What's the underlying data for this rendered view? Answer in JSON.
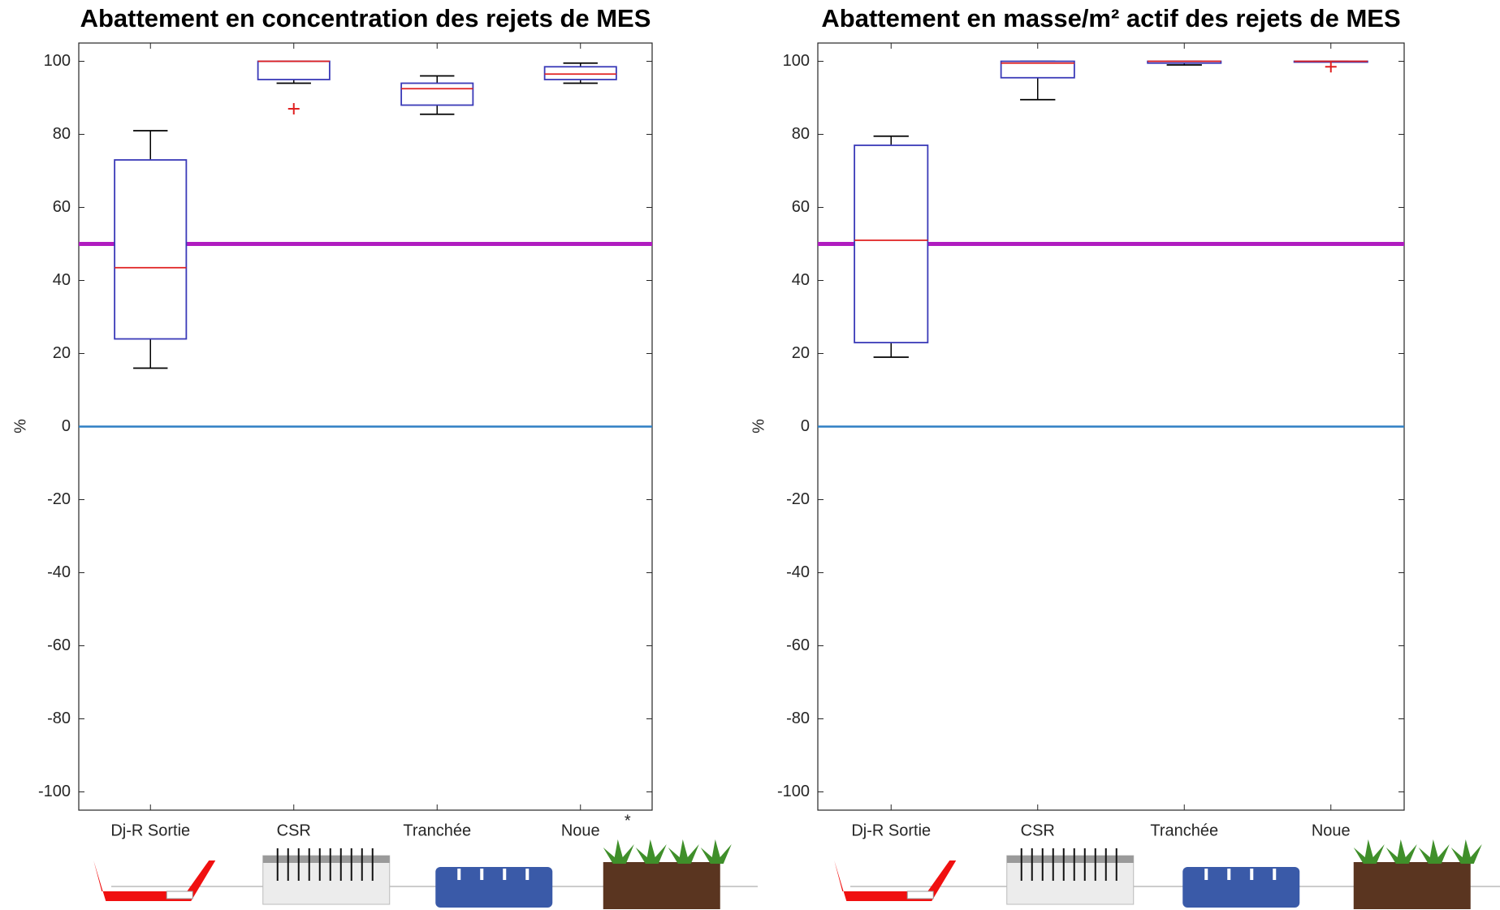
{
  "chart_data": [
    {
      "type": "box",
      "title": "Abattement en concentration des rejets de MES",
      "ylabel": "%",
      "categories": [
        "Dj-R Sortie",
        "CSR",
        "Tranchée",
        "Noue"
      ],
      "boxes": [
        {
          "min": 16,
          "q1": 24,
          "median": 43.5,
          "q3": 73,
          "max": 81,
          "outliers": []
        },
        {
          "min": 94,
          "q1": 95,
          "median": 100,
          "q3": 100,
          "max": 100,
          "outliers": [
            87
          ]
        },
        {
          "min": 85.5,
          "q1": 88,
          "median": 92.5,
          "q3": 94,
          "max": 96,
          "outliers": []
        },
        {
          "min": 94,
          "q1": 95,
          "median": 96.5,
          "q3": 98.5,
          "max": 99.5,
          "outliers": []
        }
      ],
      "box_color": "#3a3ab8",
      "median_color": "#e02020",
      "whisker_color": "#000000",
      "outlier_color": "#e02020",
      "hlines": [
        {
          "value": 50,
          "color": "#b01cc0"
        },
        {
          "value": 0,
          "color": "#2e7fc4"
        }
      ],
      "annotation": "*",
      "ylim": [
        -105,
        105
      ],
      "yticks": [
        -100,
        -80,
        -60,
        -40,
        -20,
        0,
        20,
        40,
        60,
        80,
        100
      ]
    },
    {
      "type": "box",
      "title": "Abattement en masse/m² actif des rejets de MES",
      "ylabel": "%",
      "categories": [
        "Dj-R Sortie",
        "CSR",
        "Tranchée",
        "Noue"
      ],
      "boxes": [
        {
          "min": 19,
          "q1": 23,
          "median": 51,
          "q3": 77,
          "max": 79.5,
          "outliers": []
        },
        {
          "min": 89.5,
          "q1": 95.5,
          "median": 99.5,
          "q3": 100,
          "max": 100,
          "outliers": []
        },
        {
          "min": 99,
          "q1": 99.5,
          "median": 100,
          "q3": 100,
          "max": 100,
          "outliers": []
        },
        {
          "min": 100,
          "q1": 100,
          "median": 100,
          "q3": 100,
          "max": 100,
          "outliers": [
            98.5
          ]
        }
      ],
      "box_color": "#3a3ab8",
      "median_color": "#e02020",
      "whisker_color": "#000000",
      "outlier_color": "#e02020",
      "hlines": [
        {
          "value": 50,
          "color": "#b01cc0"
        },
        {
          "value": 0,
          "color": "#2e7fc4"
        }
      ],
      "ylim": [
        -105,
        105
      ],
      "yticks": [
        -100,
        -80,
        -60,
        -40,
        -20,
        0,
        20,
        40,
        60,
        80,
        100
      ]
    }
  ]
}
